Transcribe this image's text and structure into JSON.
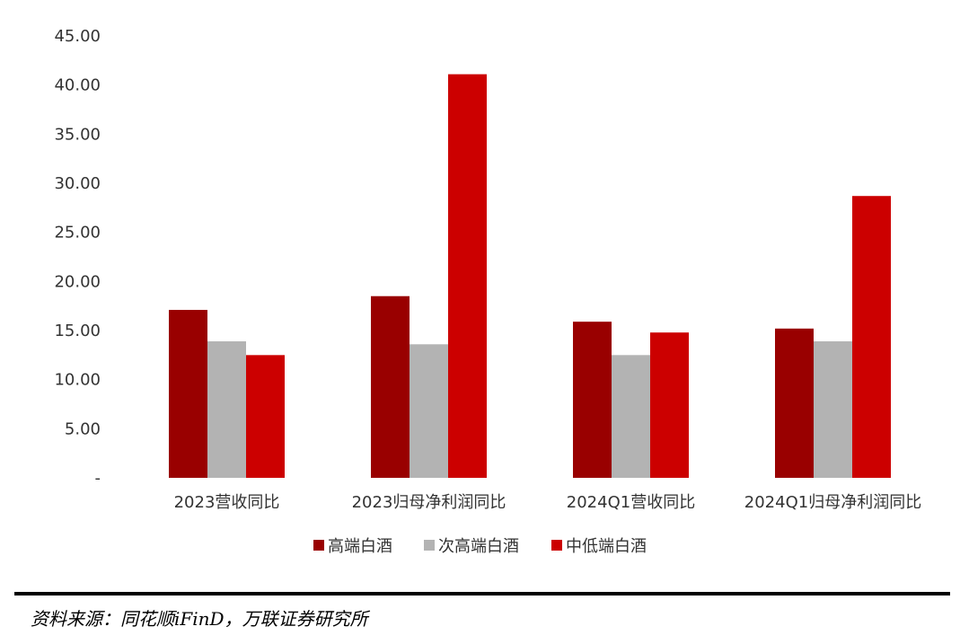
{
  "chart_data": {
    "type": "bar",
    "categories": [
      "2023营收同比",
      "2023归母净利润同比",
      "2024Q1营收同比",
      "2024Q1归母净利润同比"
    ],
    "series": [
      {
        "name": "高端白酒",
        "color": "#990000",
        "values": [
          17.1,
          18.5,
          15.9,
          15.2
        ]
      },
      {
        "name": "次高端白酒",
        "color": "#B3B3B3",
        "values": [
          13.9,
          13.6,
          12.5,
          13.9
        ]
      },
      {
        "name": "中低端白酒",
        "color": "#CC0000",
        "values": [
          12.5,
          41.1,
          14.8,
          28.7
        ]
      }
    ],
    "yticks": [
      "-",
      "5.00",
      "10.00",
      "15.00",
      "20.00",
      "25.00",
      "30.00",
      "35.00",
      "40.00",
      "45.00"
    ],
    "ylim": [
      0,
      45
    ],
    "grid": false,
    "legend_position": "bottom"
  },
  "source": "资料来源：同花顺iFinD，万联证券研究所"
}
